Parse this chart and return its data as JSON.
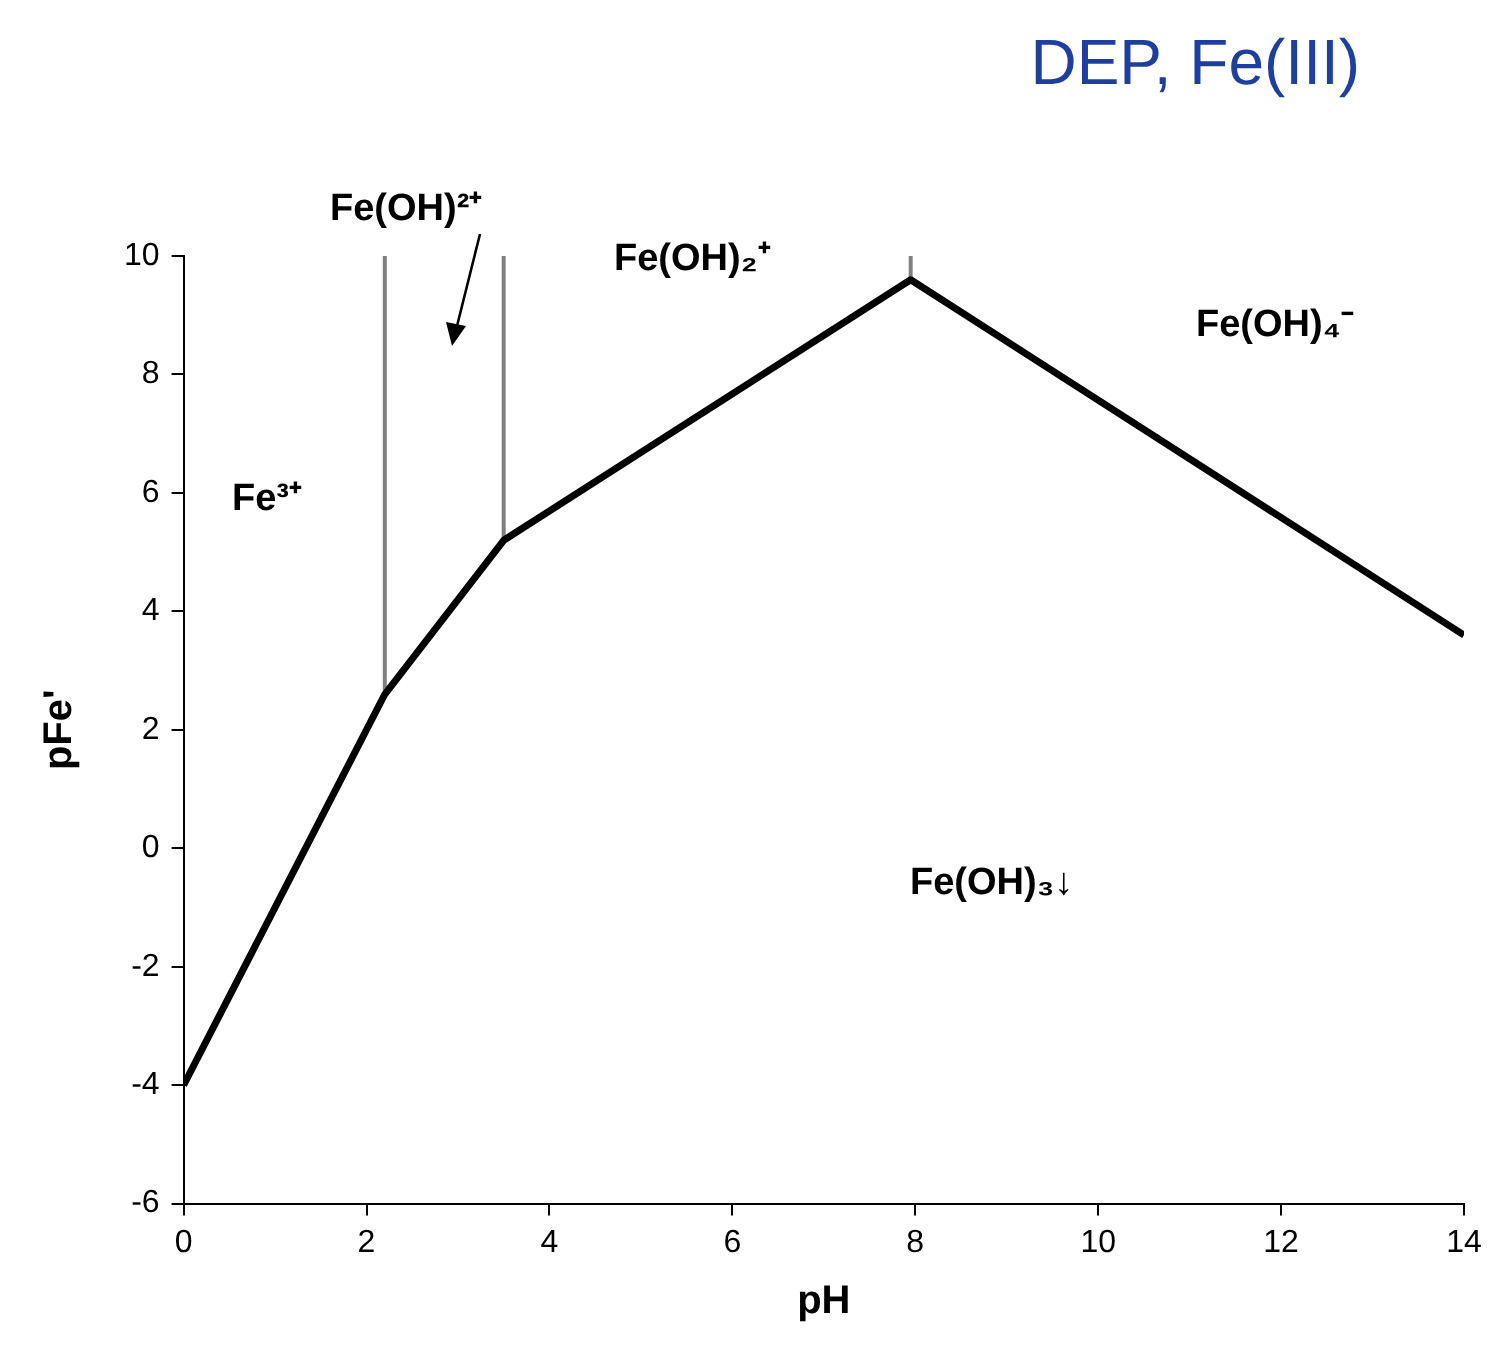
{
  "chart_data": {
    "type": "line",
    "title": "DEP, Fe(III)",
    "xlabel": "pH",
    "ylabel": "pFe'",
    "xlim": [
      0,
      14
    ],
    "xticks": [
      0,
      2,
      4,
      6,
      8,
      10,
      12,
      14
    ],
    "ylim": [
      -6,
      10
    ],
    "yticks": [
      -6,
      -4,
      -2,
      0,
      2,
      4,
      6,
      8,
      10
    ],
    "grid": false,
    "legend": false,
    "marker": "none",
    "line_style": "solid",
    "series": [
      {
        "color": "#000000",
        "x": [
          0,
          2.2,
          3.5,
          7.95,
          14
        ],
        "values": [
          -4,
          2.6,
          5.2,
          9.6,
          3.6
        ]
      },
      {
        "color": "#808080",
        "x": [
          2.2,
          2.2
        ],
        "values": [
          2.6,
          10
        ]
      },
      {
        "color": "#808080",
        "x": [
          3.5,
          3.5
        ],
        "values": [
          5.2,
          10
        ]
      },
      {
        "color": "#808080",
        "x": [
          7.95,
          7.95
        ],
        "values": [
          9.6,
          10
        ]
      }
    ],
    "annotations": [
      "Fe³⁺",
      "Fe(OH)²⁺",
      "Fe(OH)₂⁺",
      "Fe(OH)₄⁻",
      "Fe(OH)₃↓"
    ]
  }
}
